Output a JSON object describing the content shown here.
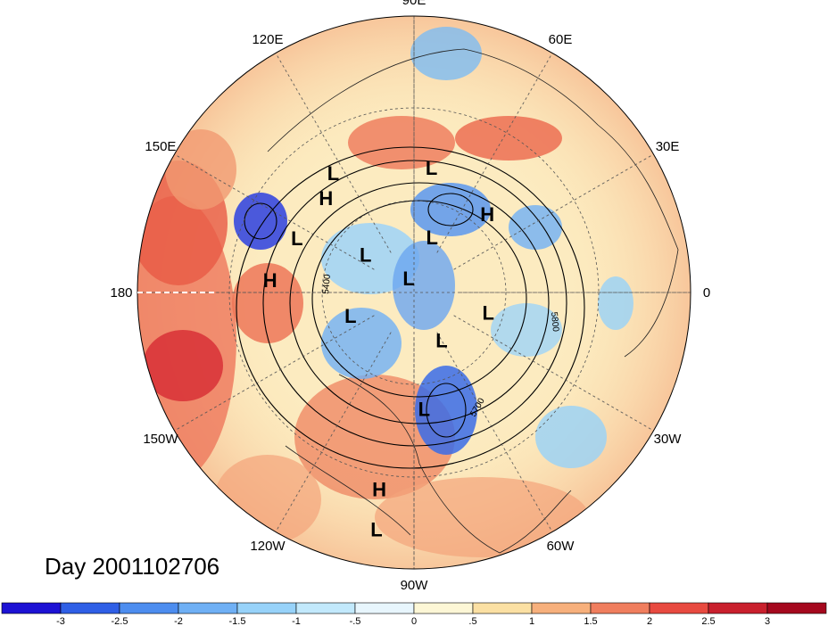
{
  "map": {
    "title": "Day 2001102706",
    "longitude_labels": [
      {
        "text": "90E",
        "lon": 90
      },
      {
        "text": "60E",
        "lon": 60
      },
      {
        "text": "30E",
        "lon": 30
      },
      {
        "text": "0",
        "lon": 0
      },
      {
        "text": "30W",
        "lon": -30
      },
      {
        "text": "60W",
        "lon": -60
      },
      {
        "text": "90W",
        "lon": -90
      },
      {
        "text": "120W",
        "lon": -120
      },
      {
        "text": "150W",
        "lon": -150
      },
      {
        "text": "180",
        "lon": 180
      },
      {
        "text": "150E",
        "lon": 150
      },
      {
        "text": "120E",
        "lon": 120
      }
    ],
    "pressure_centers": [
      {
        "type": "L",
        "lon": 82,
        "lat": 49
      },
      {
        "type": "H",
        "lon": 47,
        "lat": 55
      },
      {
        "type": "L",
        "lon": 124,
        "lat": 43
      },
      {
        "type": "H",
        "lon": 133,
        "lat": 48
      },
      {
        "type": "L",
        "lon": 155,
        "lat": 48
      },
      {
        "type": "L",
        "lon": 72,
        "lat": 71
      },
      {
        "type": "L",
        "lon": 142,
        "lat": 70
      },
      {
        "type": "L",
        "lon": 110,
        "lat": 85
      },
      {
        "type": "H",
        "lon": 175,
        "lat": 43
      },
      {
        "type": "L",
        "lon": -160,
        "lat": 68
      },
      {
        "type": "L",
        "lon": -60,
        "lat": 72
      },
      {
        "type": "L",
        "lon": -15,
        "lat": 65
      },
      {
        "type": "L",
        "lon": -85,
        "lat": 52
      },
      {
        "type": "H",
        "lon": -100,
        "lat": 25
      },
      {
        "type": "L",
        "lon": -99,
        "lat": 12
      }
    ],
    "contour_labels": [
      "5400",
      "5700",
      "5800"
    ],
    "colors": {
      "background": "#ffffff",
      "grid": "#555555"
    }
  },
  "colorbar": {
    "ticks": [
      "-3",
      "-2.5",
      "-2",
      "-1.5",
      "-1",
      "-.5",
      "0",
      ".5",
      "1",
      "1.5",
      "2",
      "2.5",
      "3"
    ],
    "colors": [
      "#1d12d4",
      "#2f5fe6",
      "#4d8def",
      "#6fb0f5",
      "#97d2f9",
      "#c2e9fc",
      "#e8f6fd",
      "#fdf7d6",
      "#fbe0a3",
      "#f7b07c",
      "#f07e5e",
      "#e84a40",
      "#c9202d",
      "#a5081e"
    ]
  }
}
